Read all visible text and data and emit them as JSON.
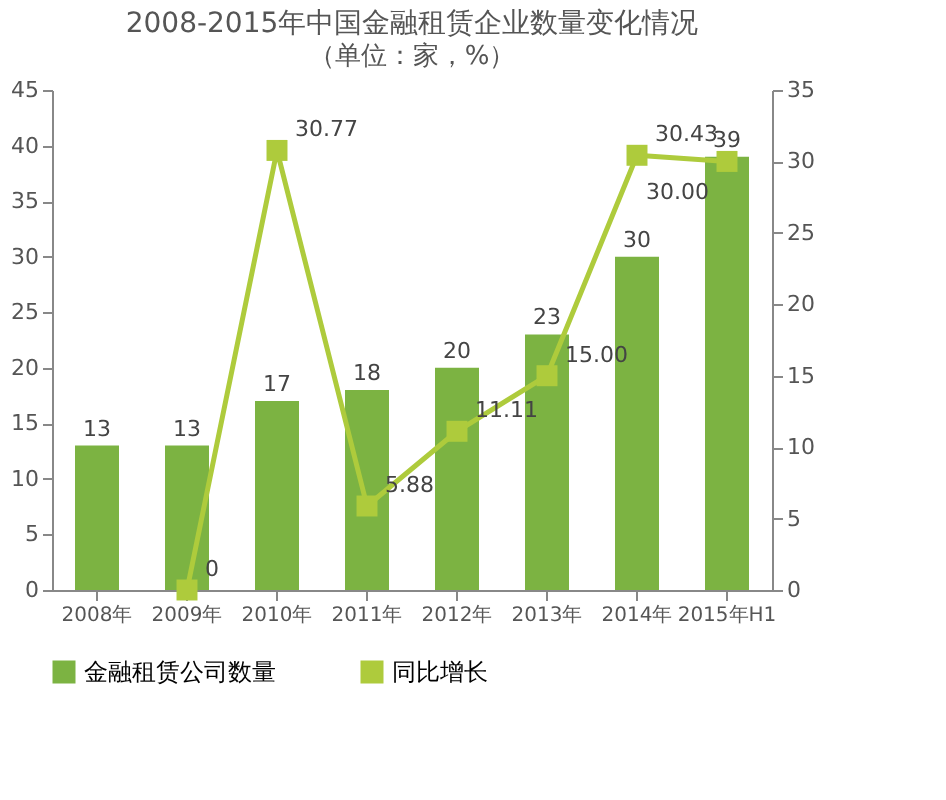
{
  "chart_data": {
    "type": "bar",
    "title": "2008-2015年中国金融租赁企业数量变化情况",
    "subtitle": "（单位：家，%）",
    "categories": [
      "2008年",
      "2009年",
      "2010年",
      "2011年",
      "2012年",
      "2013年",
      "2014年",
      "2015年H1"
    ],
    "series": [
      {
        "name": "金融租赁公司数量",
        "type": "bar",
        "color": "#7cb342",
        "values": [
          13,
          13,
          17,
          18,
          20,
          23,
          30,
          39
        ]
      },
      {
        "name": "同比增长",
        "type": "line",
        "axis": "y2",
        "color": "#aecb3c",
        "marker": "square",
        "values": [
          null,
          0,
          30.77,
          5.88,
          11.11,
          15.0,
          30.43,
          30.0
        ],
        "value_labels": [
          null,
          "0",
          "30.77",
          "5.88",
          "11.11",
          "15.00",
          "30.43",
          "30.00"
        ]
      }
    ],
    "ylim": [
      0,
      45
    ],
    "yticks": [
      0,
      5,
      10,
      15,
      20,
      25,
      30,
      35,
      40,
      45
    ],
    "y2lim": [
      0,
      35
    ],
    "y2ticks": [
      0,
      5,
      10,
      15,
      20,
      25,
      30,
      35
    ],
    "data_labels": true,
    "grid": false,
    "legend": "bottom"
  }
}
